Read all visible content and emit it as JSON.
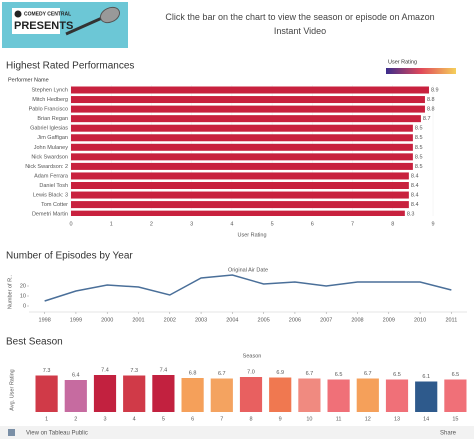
{
  "header": {
    "logo_top": "COMEDY CENTRAL",
    "logo_main": "PRESENTS",
    "instruction": "Click the bar on the chart to view the season or episode on Amazon Instant Video"
  },
  "chart_data": [
    {
      "type": "bar",
      "orientation": "horizontal",
      "title": "Highest Rated Performances",
      "category_header": "Performer Name",
      "legend_title": "User Rating",
      "xlabel": "User Rating",
      "color": "#c8213e",
      "categories": [
        "Stephen Lynch",
        "Mitch Hedberg",
        "Pablo Francisco",
        "Brian Regan",
        "Gabriel Iglesias",
        "Jim Gaffigan",
        "John Mulaney",
        "Nick Swardson",
        "Nick Swardson: 2",
        "Adam Ferrara",
        "Daniel Tosh",
        "Lewis Black: 3",
        "Tom Cotter",
        "Demetri Martin"
      ],
      "values": [
        8.9,
        8.8,
        8.8,
        8.7,
        8.5,
        8.5,
        8.5,
        8.5,
        8.5,
        8.4,
        8.4,
        8.4,
        8.4,
        8.3
      ],
      "xlim": [
        0,
        9
      ],
      "xticks": [
        0,
        1,
        2,
        3,
        4,
        5,
        6,
        7,
        8,
        9
      ]
    },
    {
      "type": "line",
      "title": "Number of Episodes by Year",
      "subtitle": "Original Air Date",
      "ylabel": "Number of R..",
      "color": "#4a6f99",
      "x": [
        1998,
        1999,
        2000,
        2001,
        2002,
        2003,
        2004,
        2005,
        2006,
        2007,
        2008,
        2009,
        2010,
        2011
      ],
      "values": [
        5,
        15,
        21,
        19,
        11,
        28,
        31,
        22,
        24,
        20,
        24,
        24,
        24,
        16
      ],
      "xlim": [
        1997.5,
        2011.5
      ],
      "xticks": [
        1998,
        1999,
        2000,
        2001,
        2002,
        2003,
        2004,
        2005,
        2006,
        2007,
        2008,
        2009,
        2010,
        2011
      ],
      "ylim": [
        0,
        33
      ],
      "yticks": [
        0,
        10,
        20
      ]
    },
    {
      "type": "bar",
      "orientation": "vertical",
      "title": "Best Season",
      "subtitle": "Season",
      "ylabel": "Avg. User Rating",
      "categories": [
        "1",
        "2",
        "3",
        "4",
        "5",
        "6",
        "7",
        "8",
        "9",
        "10",
        "11",
        "12",
        "13",
        "14",
        "15"
      ],
      "values": [
        7.3,
        6.4,
        7.4,
        7.3,
        7.4,
        6.8,
        6.7,
        7.0,
        6.9,
        6.7,
        6.5,
        6.7,
        6.5,
        6.1,
        6.5
      ],
      "value_labels": [
        "7.3",
        "6.4",
        "7.4",
        "7.3",
        "7.4",
        "6.8",
        "6.7",
        "7.0",
        "6.9",
        "6.7",
        "6.5",
        "6.7",
        "6.5",
        "6.1",
        "6.5"
      ],
      "colors": [
        "#d03a48",
        "#c66ba0",
        "#c2213f",
        "#d03a48",
        "#c2213f",
        "#f5a05a",
        "#f4a360",
        "#e86060",
        "#f07850",
        "#f08a80",
        "#f07078",
        "#f5a05a",
        "#f07078",
        "#2e5a8c",
        "#f07078"
      ],
      "ylim": [
        0,
        8.4
      ]
    }
  ],
  "footer": {
    "link": "View on Tableau Public",
    "share": "Share"
  }
}
